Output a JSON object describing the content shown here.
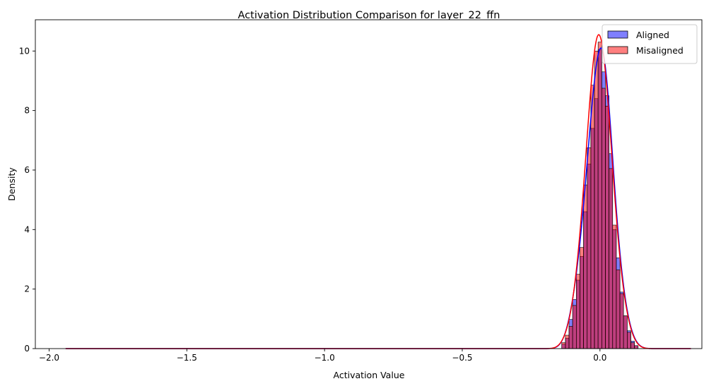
{
  "chart_data": {
    "type": "histogram",
    "title": "Activation Distribution Comparison for layer_22_ffn",
    "xlabel": "Activation Value",
    "ylabel": "Density",
    "xlim": [
      -2.05,
      0.37
    ],
    "ylim": [
      0,
      11.05
    ],
    "x_ticks": [
      -2.0,
      -1.5,
      -1.0,
      -0.5,
      0.0
    ],
    "x_tick_labels": [
      "−2.0",
      "−1.5",
      "−1.0",
      "−0.5",
      "0.0"
    ],
    "y_ticks": [
      0,
      2,
      4,
      6,
      8,
      10
    ],
    "y_tick_labels": [
      "0",
      "2",
      "4",
      "6",
      "8",
      "10"
    ],
    "grid": false,
    "legend_position": "top-right",
    "bin_width": 0.0132,
    "series": [
      {
        "name": "Aligned",
        "color": "#0000ff",
        "fill_opacity": 0.5,
        "x_range": [
          -1.94,
          0.33
        ],
        "bins": [
          {
            "x": -0.1322,
            "density": 0.15
          },
          {
            "x": -0.119,
            "density": 0.35
          },
          {
            "x": -0.1058,
            "density": 0.98
          },
          {
            "x": -0.0926,
            "density": 1.65
          },
          {
            "x": -0.0794,
            "density": 2.3
          },
          {
            "x": -0.0662,
            "density": 3.1
          },
          {
            "x": -0.053,
            "density": 4.6
          },
          {
            "x": -0.0398,
            "density": 6.2
          },
          {
            "x": -0.0266,
            "density": 7.4
          },
          {
            "x": -0.0134,
            "density": 8.4
          },
          {
            "x": -0.0002,
            "density": 10.05
          },
          {
            "x": 0.013,
            "density": 9.3
          },
          {
            "x": 0.0262,
            "density": 8.5
          },
          {
            "x": 0.0394,
            "density": 6.55
          },
          {
            "x": 0.0526,
            "density": 4.0
          },
          {
            "x": 0.0658,
            "density": 3.05
          },
          {
            "x": 0.079,
            "density": 1.9
          },
          {
            "x": 0.0922,
            "density": 1.1
          },
          {
            "x": 0.1054,
            "density": 0.6
          },
          {
            "x": 0.1186,
            "density": 0.25
          },
          {
            "x": 0.1318,
            "density": 0.1
          }
        ],
        "kde_peak": 10.1
      },
      {
        "name": "Misaligned",
        "color": "#ff0000",
        "fill_opacity": 0.5,
        "x_range": [
          -1.94,
          0.33
        ],
        "bins": [
          {
            "x": -0.1322,
            "density": 0.2
          },
          {
            "x": -0.119,
            "density": 0.45
          },
          {
            "x": -0.1058,
            "density": 0.75
          },
          {
            "x": -0.0926,
            "density": 1.45
          },
          {
            "x": -0.0794,
            "density": 2.5
          },
          {
            "x": -0.0662,
            "density": 3.4
          },
          {
            "x": -0.053,
            "density": 5.5
          },
          {
            "x": -0.0398,
            "density": 6.75
          },
          {
            "x": -0.0266,
            "density": 8.85
          },
          {
            "x": -0.0134,
            "density": 10.0
          },
          {
            "x": -0.0002,
            "density": 10.3
          },
          {
            "x": 0.013,
            "density": 8.75
          },
          {
            "x": 0.0262,
            "density": 8.15
          },
          {
            "x": 0.0394,
            "density": 6.05
          },
          {
            "x": 0.0526,
            "density": 4.15
          },
          {
            "x": 0.0658,
            "density": 2.65
          },
          {
            "x": 0.079,
            "density": 1.85
          },
          {
            "x": 0.0922,
            "density": 1.1
          },
          {
            "x": 0.1054,
            "density": 0.55
          },
          {
            "x": 0.1186,
            "density": 0.2
          },
          {
            "x": 0.1318,
            "density": 0.1
          }
        ],
        "kde_peak": 10.55
      }
    ]
  }
}
